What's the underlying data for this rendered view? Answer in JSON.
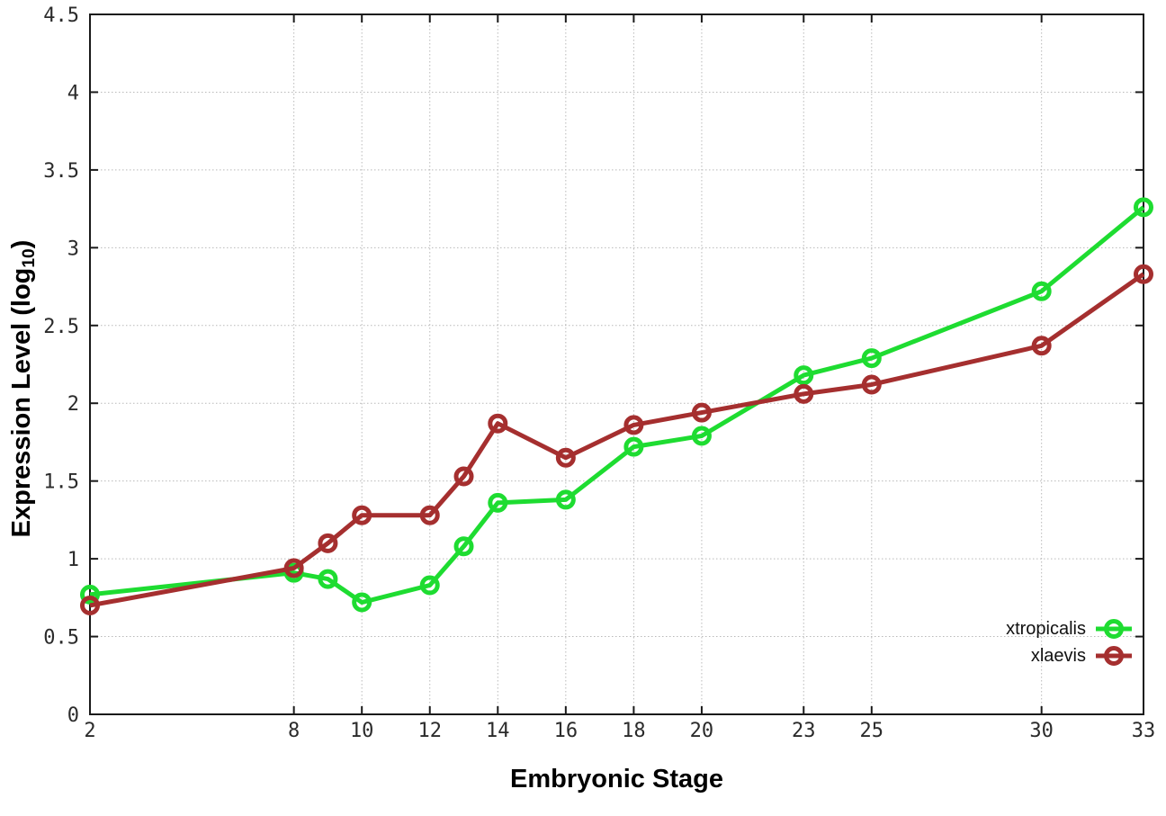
{
  "chart_data": {
    "type": "line",
    "title": "",
    "xlabel": "Embryonic Stage",
    "ylabel": "Expression Level (log10)",
    "ylabel_parts": {
      "base": "Expression Level (log",
      "sub": "10",
      "close": ")"
    },
    "xlim": [
      2,
      33
    ],
    "ylim": [
      0,
      4.5
    ],
    "xtick_values": [
      2,
      8,
      10,
      12,
      14,
      16,
      18,
      20,
      23,
      25,
      30,
      33
    ],
    "xtick_labels": [
      "2",
      "8",
      "10",
      "12",
      "14",
      "16",
      "18",
      "20",
      "23",
      "25",
      "30",
      "33"
    ],
    "ytick_values": [
      0,
      0.5,
      1,
      1.5,
      2,
      2.5,
      3,
      3.5,
      4,
      4.5
    ],
    "ytick_labels": [
      "0",
      "0.5",
      "1",
      "1.5",
      "2",
      "2.5",
      "3",
      "3.5",
      "4",
      "4.5"
    ],
    "grid": true,
    "legend_position": "inside-bottom-right",
    "x": [
      2,
      8,
      9,
      10,
      12,
      13,
      14,
      16,
      18,
      20,
      23,
      25,
      30,
      33
    ],
    "series": [
      {
        "name": "xtropicalis",
        "color": "#1edc31",
        "marker": "open-circle",
        "values": [
          0.77,
          0.91,
          0.87,
          0.72,
          0.83,
          1.08,
          1.36,
          1.38,
          1.72,
          1.79,
          2.18,
          2.29,
          2.72,
          3.26
        ]
      },
      {
        "name": "xlaevis",
        "color": "#a52f2f",
        "marker": "open-circle",
        "values": [
          0.7,
          0.94,
          1.1,
          1.28,
          1.28,
          1.53,
          1.87,
          1.65,
          1.86,
          1.94,
          2.06,
          2.12,
          2.37,
          2.83
        ]
      }
    ],
    "colors": {
      "axis": "#1a1a1a",
      "grid": "#b9b9b9",
      "tick_text": "#2b2b2b",
      "label_text": "#000000",
      "background": "#ffffff"
    }
  }
}
